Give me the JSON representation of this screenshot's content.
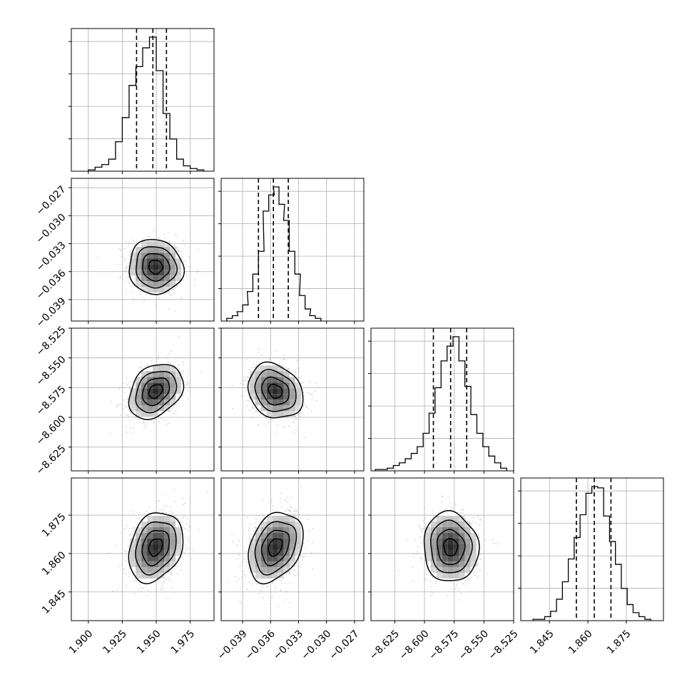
{
  "chart_data": {
    "type": "corner",
    "colors": {
      "line": "#000000",
      "grid": "#b0b0b0",
      "background": "#ffffff",
      "scatter": "#9a9a9a"
    },
    "grid": true,
    "parameters": [
      {
        "range": [
          1.8875,
          1.9925
        ],
        "ticks": [
          1.9,
          1.925,
          1.95,
          1.975
        ],
        "tick_labels": [
          "1.900",
          "1.925",
          "1.950",
          "1.975"
        ],
        "mean": 1.9495,
        "sigma": 0.0095,
        "quantiles": [
          1.9355,
          1.9475,
          1.9575
        ]
      },
      {
        "range": [
          -0.0413,
          -0.026
        ],
        "ticks": [
          -0.039,
          -0.036,
          -0.033,
          -0.03,
          -0.027
        ],
        "tick_labels": [
          "−0.039",
          "−0.036",
          "−0.033",
          "−0.030",
          "−0.027"
        ],
        "mean": -0.0355,
        "sigma": 0.0014,
        "quantiles": [
          -0.0373,
          -0.0357,
          -0.0341
        ]
      },
      {
        "range": [
          -8.645,
          -8.525
        ],
        "ticks": [
          -8.625,
          -8.6,
          -8.575,
          -8.55,
          -8.525
        ],
        "tick_labels": [
          "−8.625",
          "−8.600",
          "−8.575",
          "−8.550",
          "−8.525"
        ],
        "mean": -8.578,
        "sigma": 0.011,
        "quantiles": [
          -8.5925,
          -8.578,
          -8.5645
        ]
      },
      {
        "range": [
          1.8338,
          1.8895
        ],
        "ticks": [
          1.845,
          1.86,
          1.875
        ],
        "tick_labels": [
          "1.845",
          "1.860",
          "1.875"
        ],
        "mean": 1.8625,
        "sigma": 0.0065,
        "quantiles": [
          1.8555,
          1.8625,
          1.869
        ]
      }
    ],
    "histograms": [
      {
        "param": 0,
        "bins": [
          1.9025,
          1.9075,
          1.9125,
          1.9175,
          1.9225,
          1.9275,
          1.9325,
          1.9375,
          1.9425,
          1.9475,
          1.9525,
          1.9575,
          1.9625,
          1.9675,
          1.9725,
          1.9775,
          1.9825
        ],
        "counts": [
          1,
          3,
          5,
          9,
          22,
          40,
          64,
          78,
          92,
          100,
          75,
          43,
          24,
          9,
          4,
          2,
          1
        ]
      },
      {
        "param": 1,
        "bins": [
          -0.0404,
          -0.0398,
          -0.0393,
          -0.0387,
          -0.0382,
          -0.0376,
          -0.037,
          -0.0365,
          -0.0359,
          -0.0354,
          -0.0348,
          -0.0343,
          -0.0337,
          -0.0331,
          -0.0326,
          -0.032,
          -0.0315,
          -0.0309
        ],
        "counts": [
          2,
          4,
          7,
          12,
          22,
          35,
          52,
          82,
          94,
          100,
          87,
          75,
          52,
          35,
          19,
          9,
          4,
          2
        ]
      },
      {
        "param": 2,
        "bins": [
          -8.6388,
          -8.6337,
          -8.6287,
          -8.6237,
          -8.6187,
          -8.6137,
          -8.6086,
          -8.6036,
          -8.5986,
          -8.5936,
          -8.5886,
          -8.5835,
          -8.5785,
          -8.5735,
          -8.5685,
          -8.5635,
          -8.5585,
          -8.5534,
          -8.5484,
          -8.5434,
          -8.5384,
          -8.5334
        ],
        "counts": [
          1,
          1,
          2,
          4,
          6,
          9,
          13,
          18,
          28,
          43,
          62,
          82,
          93,
          100,
          82,
          63,
          42,
          28,
          18,
          11,
          6,
          2
        ]
      },
      {
        "param": 3,
        "bins": [
          1.8397,
          1.842,
          1.8443,
          1.8466,
          1.8489,
          1.8512,
          1.8535,
          1.8558,
          1.8581,
          1.8604,
          1.8627,
          1.865,
          1.8673,
          1.8696,
          1.8719,
          1.8742,
          1.8765,
          1.8788,
          1.8811,
          1.8834
        ],
        "counts": [
          1,
          1,
          3,
          7,
          16,
          29,
          46,
          62,
          79,
          95,
          100,
          99,
          78,
          59,
          42,
          24,
          12,
          6,
          3,
          1
        ]
      }
    ],
    "pairs": [
      {
        "x": 0,
        "y": 1,
        "center": [
          1.9495,
          -0.0355
        ],
        "correlation": -0.05
      },
      {
        "x": 0,
        "y": 2,
        "center": [
          1.9495,
          -8.578
        ],
        "correlation": 0.3
      },
      {
        "x": 1,
        "y": 2,
        "center": [
          -0.0355,
          -8.578
        ],
        "correlation": -0.2
      },
      {
        "x": 0,
        "y": 3,
        "center": [
          1.9495,
          1.8625
        ],
        "correlation": 0.25
      },
      {
        "x": 1,
        "y": 3,
        "center": [
          -0.0355,
          1.8625
        ],
        "correlation": 0.3
      },
      {
        "x": 2,
        "y": 3,
        "center": [
          -8.578,
          1.8625
        ],
        "correlation": -0.05
      }
    ],
    "contour_levels_sigma": [
      0.5,
      1.0,
      1.5,
      2.0
    ]
  }
}
